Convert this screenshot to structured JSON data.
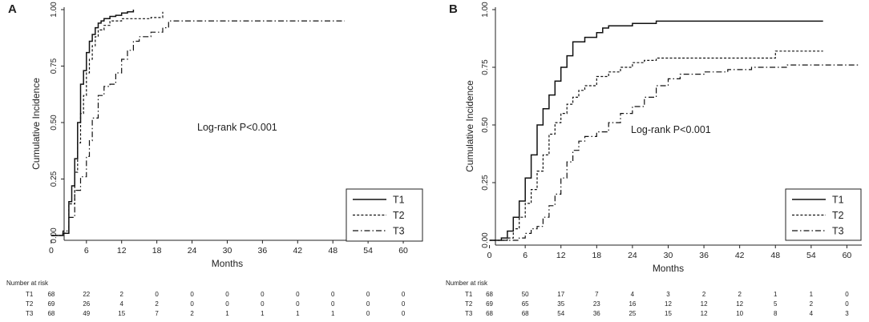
{
  "chart_data": [
    {
      "panel_label": "A",
      "type": "line",
      "subtype": "cumulative-incidence-step",
      "xlabel": "Months",
      "ylabel": "Cumulative Incidence",
      "xlim": [
        0,
        60
      ],
      "ylim": [
        0,
        1
      ],
      "x_ticks": [
        0,
        6,
        12,
        18,
        24,
        30,
        36,
        42,
        48,
        54,
        60
      ],
      "y_ticks": [
        0,
        0.25,
        0.5,
        0.75,
        1
      ],
      "y_tick_labels": [
        "0.00",
        "0.25",
        "0.50",
        "0.75",
        "1.00"
      ],
      "annotation": "Log-rank P<0.001",
      "legend_position": "bottom-right",
      "series": [
        {
          "name": "T1",
          "style": "solid",
          "x": [
            0,
            2,
            3,
            3.5,
            4,
            4.5,
            5,
            5.5,
            6,
            6.5,
            7,
            7.5,
            8,
            8.5,
            9,
            10,
            11,
            12,
            13,
            14
          ],
          "y": [
            0,
            0.01,
            0.15,
            0.22,
            0.34,
            0.5,
            0.67,
            0.73,
            0.81,
            0.86,
            0.89,
            0.92,
            0.94,
            0.95,
            0.96,
            0.97,
            0.975,
            0.985,
            0.99,
            1.0
          ]
        },
        {
          "name": "T2",
          "style": "dashed",
          "x": [
            0,
            2,
            3,
            4,
            4.5,
            5,
            5.5,
            6,
            6.5,
            7,
            7.5,
            8,
            9,
            10,
            12,
            14,
            17,
            19
          ],
          "y": [
            0,
            0.01,
            0.14,
            0.28,
            0.41,
            0.54,
            0.62,
            0.72,
            0.78,
            0.84,
            0.88,
            0.91,
            0.93,
            0.95,
            0.96,
            0.96,
            0.965,
            0.99
          ]
        },
        {
          "name": "T3",
          "style": "dashdot",
          "x": [
            0,
            2,
            3,
            4,
            5,
            6,
            6.5,
            7,
            8,
            9,
            10,
            11,
            12,
            13,
            14,
            15,
            17,
            19,
            20,
            50
          ],
          "y": [
            0,
            0.02,
            0.08,
            0.2,
            0.26,
            0.35,
            0.42,
            0.52,
            0.62,
            0.66,
            0.67,
            0.72,
            0.78,
            0.82,
            0.86,
            0.88,
            0.9,
            0.92,
            0.95,
            0.95
          ]
        }
      ],
      "risk_table": {
        "title": "Number at risk",
        "times": [
          0,
          6,
          12,
          18,
          24,
          30,
          36,
          42,
          48,
          54,
          60
        ],
        "rows": [
          {
            "name": "T1",
            "values": [
              "68",
              "22",
              "2",
              "0",
              "0",
              "0",
              "0",
              "0",
              "0",
              "0",
              "0"
            ]
          },
          {
            "name": "T2",
            "values": [
              "69",
              "26",
              "4",
              "2",
              "0",
              "0",
              "0",
              "0",
              "0",
              "0",
              "0"
            ]
          },
          {
            "name": "T3",
            "values": [
              "68",
              "49",
              "15",
              "7",
              "2",
              "1",
              "1",
              "1",
              "1",
              "0",
              "0"
            ]
          }
        ]
      }
    },
    {
      "panel_label": "B",
      "type": "line",
      "subtype": "cumulative-incidence-step",
      "xlabel": "Months",
      "ylabel": "Cumulative Incidence",
      "xlim": [
        0,
        60
      ],
      "ylim": [
        0,
        1
      ],
      "x_ticks": [
        0,
        6,
        12,
        18,
        24,
        30,
        36,
        42,
        48,
        54,
        60
      ],
      "y_ticks": [
        0,
        0.25,
        0.5,
        0.75,
        1
      ],
      "y_tick_labels": [
        "0.00",
        "0.25",
        "0.50",
        "0.75",
        "1.00"
      ],
      "annotation": "Log-rank P<0.001",
      "legend_position": "bottom-right",
      "series": [
        {
          "name": "T1",
          "style": "solid",
          "x": [
            0,
            2,
            3,
            4,
            5,
            6,
            7,
            8,
            9,
            10,
            11,
            12,
            13,
            14,
            16,
            18,
            19,
            20,
            24,
            28,
            56
          ],
          "y": [
            0,
            0.01,
            0.04,
            0.1,
            0.17,
            0.27,
            0.37,
            0.5,
            0.57,
            0.63,
            0.69,
            0.75,
            0.8,
            0.86,
            0.88,
            0.9,
            0.92,
            0.93,
            0.94,
            0.95,
            0.95
          ]
        },
        {
          "name": "T2",
          "style": "dashed",
          "x": [
            0,
            3,
            4,
            5,
            6,
            7,
            8,
            9,
            10,
            11,
            12,
            13,
            14,
            15,
            16,
            18,
            20,
            22,
            24,
            26,
            28,
            30,
            36,
            40,
            46,
            48,
            56
          ],
          "y": [
            0,
            0.01,
            0.05,
            0.1,
            0.16,
            0.22,
            0.3,
            0.37,
            0.46,
            0.51,
            0.55,
            0.59,
            0.62,
            0.65,
            0.67,
            0.71,
            0.73,
            0.75,
            0.77,
            0.78,
            0.79,
            0.79,
            0.79,
            0.79,
            0.79,
            0.82,
            0.82
          ]
        },
        {
          "name": "T3",
          "style": "dashdot",
          "x": [
            0,
            5,
            6,
            7,
            8,
            9,
            10,
            11,
            12,
            13,
            14,
            15,
            16,
            18,
            20,
            22,
            24,
            26,
            28,
            30,
            32,
            36,
            40,
            44,
            50,
            56,
            62
          ],
          "y": [
            0,
            0.01,
            0.03,
            0.05,
            0.06,
            0.1,
            0.15,
            0.2,
            0.27,
            0.34,
            0.39,
            0.43,
            0.45,
            0.47,
            0.51,
            0.55,
            0.58,
            0.62,
            0.67,
            0.7,
            0.72,
            0.73,
            0.74,
            0.75,
            0.76,
            0.76,
            0.76
          ]
        }
      ],
      "risk_table": {
        "title": "Number at risk",
        "times": [
          0,
          6,
          12,
          18,
          24,
          30,
          36,
          42,
          48,
          54,
          60
        ],
        "rows": [
          {
            "name": "T1",
            "values": [
              "68",
              "50",
              "17",
              "7",
              "4",
              "3",
              "2",
              "2",
              "1",
              "1",
              "0"
            ]
          },
          {
            "name": "T2",
            "values": [
              "69",
              "65",
              "35",
              "23",
              "16",
              "12",
              "12",
              "12",
              "5",
              "2",
              "0"
            ]
          },
          {
            "name": "T3",
            "values": [
              "68",
              "68",
              "54",
              "36",
              "25",
              "15",
              "12",
              "10",
              "8",
              "4",
              "3"
            ]
          }
        ]
      }
    }
  ]
}
